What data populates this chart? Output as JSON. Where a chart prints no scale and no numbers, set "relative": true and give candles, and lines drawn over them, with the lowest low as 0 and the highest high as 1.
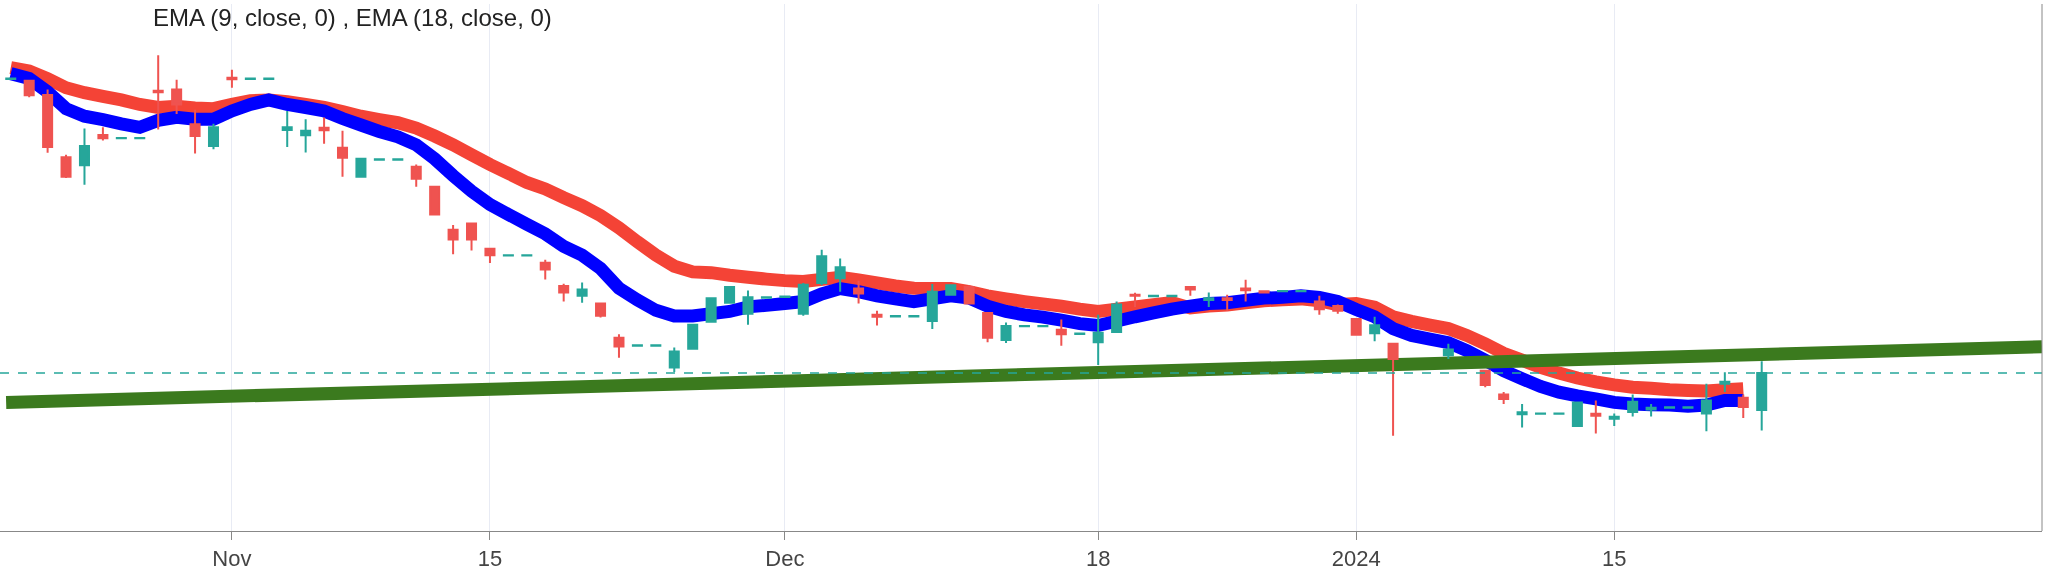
{
  "chart_data": {
    "type": "candlestick",
    "title": "EMA (9, close, 0) , EMA (18, close, 0)",
    "relative": true,
    "grid": "x",
    "xlim": [
      "2023-10-19T10:00",
      "2024-02-07T05:00"
    ],
    "xticks": [
      {
        "value": "2023-11-01",
        "label": "Nov"
      },
      {
        "value": "2023-11-15",
        "label": "15"
      },
      {
        "value": "2023-12-01",
        "label": "Dec"
      },
      {
        "value": "2023-12-18",
        "label": "18"
      },
      {
        "value": "2024-01-01",
        "label": "2024"
      },
      {
        "value": "2024-01-15",
        "label": "15"
      }
    ],
    "x": [
      "2023-10-20",
      "2023-10-21",
      "2023-10-22",
      "2023-10-23",
      "2023-10-24",
      "2023-10-25",
      "2023-10-26",
      "2023-10-27",
      "2023-10-28",
      "2023-10-29",
      "2023-10-30",
      "2023-10-31",
      "2023-11-01",
      "2023-11-02",
      "2023-11-03",
      "2023-11-04",
      "2023-11-05",
      "2023-11-06",
      "2023-11-07",
      "2023-11-08",
      "2023-11-09",
      "2023-11-10",
      "2023-11-11",
      "2023-11-12",
      "2023-11-13",
      "2023-11-14",
      "2023-11-15",
      "2023-11-16",
      "2023-11-17",
      "2023-11-18",
      "2023-11-19",
      "2023-11-20",
      "2023-11-21",
      "2023-11-22",
      "2023-11-23",
      "2023-11-24",
      "2023-11-25",
      "2023-11-26",
      "2023-11-27",
      "2023-11-28",
      "2023-11-29",
      "2023-11-30",
      "2023-12-01",
      "2023-12-02",
      "2023-12-03",
      "2023-12-04",
      "2023-12-05",
      "2023-12-06",
      "2023-12-07",
      "2023-12-08",
      "2023-12-09",
      "2023-12-10",
      "2023-12-11",
      "2023-12-12",
      "2023-12-13",
      "2023-12-14",
      "2023-12-15",
      "2023-12-16",
      "2023-12-17",
      "2023-12-18",
      "2023-12-19",
      "2023-12-20",
      "2023-12-21",
      "2023-12-22",
      "2023-12-23",
      "2023-12-24",
      "2023-12-25",
      "2023-12-26",
      "2023-12-27",
      "2023-12-28",
      "2023-12-29",
      "2023-12-30",
      "2023-12-31",
      "2024-01-01",
      "2024-01-02",
      "2024-01-03",
      "2024-01-04",
      "2024-01-05",
      "2024-01-06",
      "2024-01-07",
      "2024-01-08",
      "2024-01-09",
      "2024-01-10",
      "2024-01-11",
      "2024-01-12",
      "2024-01-13",
      "2024-01-14",
      "2024-01-15",
      "2024-01-16",
      "2024-01-17",
      "2024-01-18",
      "2024-01-19",
      "2024-01-20",
      "2024-01-21",
      "2024-01-22",
      "2024-01-23"
    ],
    "ohlc": [
      [
        0.938,
        0.941,
        0.936,
        0.939
      ],
      [
        0.933,
        0.936,
        0.89,
        0.895
      ],
      [
        0.896,
        0.91,
        0.744,
        0.759
      ],
      [
        0.732,
        0.739,
        0.678,
        0.681
      ],
      [
        0.711,
        0.808,
        0.66,
        0.762
      ],
      [
        0.791,
        0.811,
        0.776,
        0.782
      ],
      [
        0.782,
        0.784,
        0.781,
        0.783
      ],
      [
        0.782,
        0.784,
        0.781,
        0.783
      ],
      [
        0.907,
        1.0,
        0.805,
        0.903
      ],
      [
        0.91,
        0.936,
        0.846,
        0.871
      ],
      [
        0.819,
        0.857,
        0.742,
        0.788
      ],
      [
        0.762,
        0.82,
        0.753,
        0.811
      ],
      [
        0.941,
        0.962,
        0.915,
        0.937
      ],
      [
        0.938,
        0.94,
        0.937,
        0.939
      ],
      [
        0.938,
        0.94,
        0.937,
        0.939
      ],
      [
        0.804,
        0.854,
        0.759,
        0.811
      ],
      [
        0.79,
        0.832,
        0.745,
        0.802
      ],
      [
        0.81,
        0.837,
        0.768,
        0.803
      ],
      [
        0.757,
        0.802,
        0.681,
        0.731
      ],
      [
        0.681,
        0.729,
        0.68,
        0.728
      ],
      [
        0.726,
        0.728,
        0.725,
        0.727
      ],
      [
        0.726,
        0.728,
        0.725,
        0.727
      ],
      [
        0.707,
        0.713,
        0.655,
        0.676
      ],
      [
        0.655,
        0.656,
        0.579,
        0.582
      ],
      [
        0.542,
        0.554,
        0.477,
        0.516
      ],
      [
        0.558,
        0.559,
        0.487,
        0.516
      ],
      [
        0.492,
        0.493,
        0.454,
        0.475
      ],
      [
        0.474,
        0.476,
        0.473,
        0.475
      ],
      [
        0.474,
        0.476,
        0.473,
        0.475
      ],
      [
        0.455,
        0.463,
        0.411,
        0.437
      ],
      [
        0.394,
        0.4,
        0.353,
        0.377
      ],
      [
        0.368,
        0.403,
        0.35,
        0.385
      ],
      [
        0.348,
        0.349,
        0.311,
        0.316
      ],
      [
        0.258,
        0.267,
        0.205,
        0.235
      ],
      [
        0.237,
        0.239,
        0.236,
        0.238
      ],
      [
        0.237,
        0.239,
        0.236,
        0.238
      ],
      [
        0.18,
        0.232,
        0.168,
        0.222
      ],
      [
        0.229,
        0.294,
        0.228,
        0.292
      ],
      [
        0.3,
        0.364,
        0.299,
        0.362
      ],
      [
        0.35,
        0.392,
        0.349,
        0.391
      ],
      [
        0.321,
        0.382,
        0.292,
        0.364
      ],
      [
        0.363,
        0.365,
        0.362,
        0.364
      ],
      [
        0.365,
        0.367,
        0.364,
        0.366
      ],
      [
        0.321,
        0.402,
        0.316,
        0.397
      ],
      [
        0.402,
        0.489,
        0.396,
        0.472
      ],
      [
        0.414,
        0.466,
        0.379,
        0.443
      ],
      [
        0.387,
        0.408,
        0.348,
        0.374
      ],
      [
        0.318,
        0.329,
        0.29,
        0.313
      ],
      [
        0.314,
        0.316,
        0.313,
        0.315
      ],
      [
        0.314,
        0.316,
        0.313,
        0.315
      ],
      [
        0.302,
        0.399,
        0.281,
        0.379
      ],
      [
        0.371,
        0.398,
        0.37,
        0.396
      ],
      [
        0.391,
        0.396,
        0.347,
        0.348
      ],
      [
        0.323,
        0.324,
        0.246,
        0.258
      ],
      [
        0.252,
        0.298,
        0.244,
        0.289
      ],
      [
        0.288,
        0.29,
        0.287,
        0.289
      ],
      [
        0.288,
        0.29,
        0.287,
        0.289
      ],
      [
        0.279,
        0.306,
        0.237,
        0.267
      ],
      [
        0.268,
        0.27,
        0.267,
        0.269
      ],
      [
        0.246,
        0.318,
        0.186,
        0.271
      ],
      [
        0.273,
        0.353,
        0.272,
        0.345
      ],
      [
        0.371,
        0.376,
        0.339,
        0.368
      ],
      [
        0.367,
        0.369,
        0.366,
        0.368
      ],
      [
        0.367,
        0.369,
        0.366,
        0.368
      ],
      [
        0.391,
        0.392,
        0.368,
        0.385
      ],
      [
        0.357,
        0.377,
        0.339,
        0.362
      ],
      [
        0.362,
        0.371,
        0.329,
        0.357
      ],
      [
        0.387,
        0.41,
        0.353,
        0.383
      ],
      [
        0.38,
        0.382,
        0.375,
        0.377
      ],
      [
        0.38,
        0.382,
        0.379,
        0.381
      ],
      [
        0.38,
        0.382,
        0.379,
        0.381
      ],
      [
        0.353,
        0.368,
        0.318,
        0.333
      ],
      [
        0.341,
        0.345,
        0.321,
        0.329
      ],
      [
        0.307,
        0.308,
        0.265,
        0.266
      ],
      [
        0.27,
        0.313,
        0.249,
        0.291
      ],
      [
        0.242,
        0.243,
        0.0,
        0.202
      ],
      null,
      null,
      [
        0.212,
        0.242,
        0.202,
        0.227
      ],
      null,
      [
        0.171,
        0.172,
        0.128,
        0.134
      ],
      [
        0.109,
        0.115,
        0.084,
        0.097
      ],
      [
        0.057,
        0.084,
        0.022,
        0.062
      ],
      [
        0.058,
        0.06,
        0.057,
        0.059
      ],
      [
        0.058,
        0.06,
        0.057,
        0.059
      ],
      [
        0.026,
        0.089,
        0.025,
        0.088
      ],
      [
        0.058,
        0.093,
        0.006,
        0.053
      ],
      [
        0.045,
        0.059,
        0.026,
        0.05
      ],
      [
        0.063,
        0.109,
        0.051,
        0.09
      ],
      [
        0.069,
        0.084,
        0.051,
        0.074
      ],
      [
        0.074,
        0.076,
        0.073,
        0.075
      ],
      [
        0.074,
        0.076,
        0.073,
        0.075
      ],
      [
        0.059,
        0.137,
        0.012,
        0.093
      ],
      [
        0.137,
        0.167,
        0.115,
        0.142
      ],
      [
        0.1,
        0.109,
        0.047,
        0.076
      ],
      [
        0.068,
        0.196,
        0.014,
        0.165
      ]
    ],
    "series": [
      {
        "type": "line",
        "color": "#f44336",
        "values": [
          0.968,
          0.959,
          0.939,
          0.915,
          0.902,
          0.892,
          0.883,
          0.871,
          0.863,
          0.866,
          0.862,
          0.86,
          0.871,
          0.881,
          0.883,
          0.878,
          0.871,
          0.863,
          0.852,
          0.84,
          0.831,
          0.823,
          0.809,
          0.788,
          0.765,
          0.739,
          0.713,
          0.69,
          0.666,
          0.649,
          0.626,
          0.605,
          0.579,
          0.547,
          0.51,
          0.475,
          0.446,
          0.431,
          0.429,
          0.422,
          0.417,
          0.412,
          0.408,
          0.406,
          null,
          0.417,
          0.41,
          0.402,
          0.394,
          0.388,
          0.387,
          0.387,
          0.379,
          0.368,
          0.36,
          0.353,
          0.347,
          0.341,
          0.333,
          0.327,
          null,
          0.339,
          0.345,
          0.35,
          0.336,
          0.341,
          0.344,
          0.35,
          0.355,
          0.358,
          0.36,
          0.355,
          0.345,
          0.348,
          0.338,
          0.313,
          0.301,
          0.291,
          0.282,
          0.264,
          0.242,
          0.217,
          0.199,
          0.18,
          0.165,
          0.152,
          0.142,
          0.134,
          0.128,
          0.125,
          0.121,
          0.119,
          0.118,
          0.121,
          0.124,
          null
        ]
      },
      {
        "type": "line",
        "color": "#0000ff",
        "values": [
          0.952,
          0.939,
          0.904,
          0.86,
          0.84,
          0.831,
          0.82,
          0.811,
          0.829,
          0.837,
          0.832,
          0.832,
          0.854,
          0.871,
          0.883,
          0.871,
          0.863,
          0.854,
          0.834,
          0.817,
          0.8,
          0.786,
          0.765,
          0.728,
          0.684,
          0.643,
          0.608,
          0.582,
          0.556,
          0.531,
          0.498,
          0.475,
          0.44,
          0.388,
          0.357,
          0.33,
          0.315,
          0.315,
          null,
          0.327,
          0.339,
          0.343,
          0.348,
          0.353,
          0.373,
          0.387,
          0.379,
          0.368,
          0.36,
          0.353,
          null,
          0.368,
          0.362,
          0.341,
          0.327,
          0.318,
          0.312,
          0.304,
          0.295,
          0.29,
          null,
          0.313,
          0.323,
          0.333,
          0.341,
          0.348,
          0.35,
          0.356,
          0.362,
          0.364,
          0.368,
          0.364,
          0.353,
          0.332,
          0.313,
          0.282,
          0.264,
          0.254,
          0.245,
          0.224,
          0.199,
          0.171,
          0.15,
          0.13,
          0.115,
          0.105,
          0.097,
          0.088,
          0.084,
          0.082,
          0.081,
          0.078,
          0.081,
          0.093,
          0.093,
          null
        ]
      },
      {
        "type": "line",
        "color": "#3b7a1e",
        "x": [
          "2023-10-19T18:00",
          "2024-02-07T05:00"
        ],
        "values": [
          0.088,
          0.234
        ]
      }
    ],
    "ref_lines": [
      {
        "axis": "y",
        "value": 0.165,
        "color": "#26a69a",
        "line_style": "dashed"
      }
    ]
  }
}
